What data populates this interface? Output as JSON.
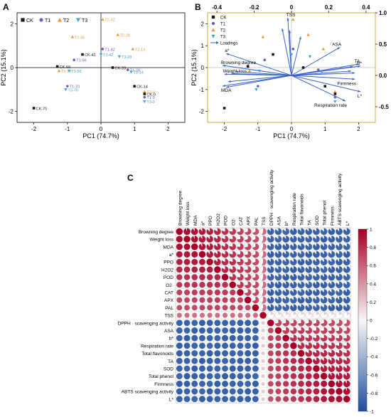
{
  "panels": {
    "A": "A",
    "B": "B",
    "C": "C"
  },
  "chart_data": [
    {
      "type": "scatter",
      "panel": "A",
      "xlabel": "PC1 (74.7%)",
      "ylabel": "PC2 (15.1%)",
      "xlim": [
        -2.5,
        2.5
      ],
      "ylim": [
        -2.5,
        2.5
      ],
      "xticks": [
        -2,
        -1,
        0,
        1,
        2
      ],
      "yticks": [
        -2,
        0,
        2
      ],
      "legend": [
        "CK",
        "T1",
        "T2",
        "T3"
      ],
      "legend_position": "top-left",
      "colors": {
        "CK": "#1a1a1a",
        "T1": "#6a5fc1",
        "T2": "#e89a3c",
        "T3": "#3fa7d6"
      },
      "points": [
        {
          "label": "T2-42",
          "group": "T2",
          "x": 0.05,
          "y": 2.2
        },
        {
          "label": "T2-28",
          "group": "T2",
          "x": 0.5,
          "y": 1.5
        },
        {
          "label": "T2-56",
          "group": "T2",
          "x": -0.85,
          "y": 1.4
        },
        {
          "label": "T2-14",
          "group": "T2",
          "x": 0.95,
          "y": 0.85
        },
        {
          "label": "CK-42",
          "group": "CK",
          "x": -0.55,
          "y": 0.6
        },
        {
          "label": "T1-42",
          "group": "T1",
          "x": 0.05,
          "y": 0.85
        },
        {
          "label": "T3-42",
          "group": "T3",
          "x": 0.0,
          "y": 0.6
        },
        {
          "label": "T1-56",
          "group": "T1",
          "x": -0.8,
          "y": 0.35
        },
        {
          "label": "T3-28",
          "group": "T3",
          "x": 0.55,
          "y": 0.5
        },
        {
          "label": "T1-28",
          "group": "T1",
          "x": 0.8,
          "y": -0.1
        },
        {
          "label": "CK-56",
          "group": "CK",
          "x": -1.3,
          "y": 0.05
        },
        {
          "label": "T2-70",
          "group": "T2",
          "x": -1.25,
          "y": -0.15
        },
        {
          "label": "T3-56",
          "group": "T3",
          "x": -0.95,
          "y": -0.15
        },
        {
          "label": "CK-28",
          "group": "CK",
          "x": 0.35,
          "y": 0.0
        },
        {
          "label": "T3-14",
          "group": "T3",
          "x": 0.9,
          "y": -0.2
        },
        {
          "label": "CK-14",
          "group": "CK",
          "x": 1.0,
          "y": -0.85
        },
        {
          "label": "T1-70",
          "group": "T1",
          "x": -1.0,
          "y": -0.85
        },
        {
          "label": "T3-70",
          "group": "T3",
          "x": -1.05,
          "y": -1.0
        },
        {
          "label": "T2-0",
          "group": "T2",
          "x": 1.3,
          "y": -1.1
        },
        {
          "label": "CK-0",
          "group": "CK",
          "x": 1.3,
          "y": -1.2
        },
        {
          "label": "T1-0",
          "group": "T1",
          "x": 1.3,
          "y": -1.35
        },
        {
          "label": "T3-0",
          "group": "T3",
          "x": 1.3,
          "y": -1.55
        },
        {
          "label": "CK-70",
          "group": "CK",
          "x": -2.0,
          "y": -1.85
        }
      ]
    },
    {
      "type": "scatter",
      "panel": "B",
      "xlabel": "PC1 (74.7%)",
      "ylabel": "PC2 (15.1%)",
      "xlim": [
        -2.5,
        2.5
      ],
      "ylim": [
        -2.5,
        2.5
      ],
      "xticks": [
        -2,
        -1,
        0,
        1,
        2
      ],
      "yticks": [
        -2,
        -1,
        0,
        1,
        2
      ],
      "top_xlim": [
        -0.45,
        0.45
      ],
      "top_xticks": [
        "-0.4",
        "-0.2",
        "0",
        "0.2",
        "0.4"
      ],
      "right_ylim": [
        -0.75,
        1.0
      ],
      "right_yticks": [
        "1.0",
        "0.5",
        "0.0",
        "-0.5"
      ],
      "legend": [
        "CK",
        "T1",
        "T2",
        "T3",
        "Loadings"
      ],
      "legend_position": "top-left",
      "points": [
        {
          "group": "T2",
          "x": 0.05,
          "y": 2.2
        },
        {
          "group": "T2",
          "x": 0.5,
          "y": 1.5
        },
        {
          "group": "T2",
          "x": -0.85,
          "y": 1.4
        },
        {
          "group": "T2",
          "x": 0.95,
          "y": 0.85
        },
        {
          "group": "CK",
          "x": -0.55,
          "y": 0.6
        },
        {
          "group": "T1",
          "x": 0.05,
          "y": 0.85
        },
        {
          "group": "T3",
          "x": 0.0,
          "y": 0.6
        },
        {
          "group": "T1",
          "x": -0.8,
          "y": 0.35
        },
        {
          "group": "T3",
          "x": 0.55,
          "y": 0.5
        },
        {
          "group": "T1",
          "x": 0.8,
          "y": -0.1
        },
        {
          "group": "CK",
          "x": -1.3,
          "y": 0.05
        },
        {
          "group": "T2",
          "x": -1.25,
          "y": -0.15
        },
        {
          "group": "T3",
          "x": -0.95,
          "y": -0.15
        },
        {
          "group": "CK",
          "x": 0.35,
          "y": 0.0
        },
        {
          "group": "T3",
          "x": 0.9,
          "y": -0.2
        },
        {
          "group": "CK",
          "x": 1.0,
          "y": -0.85
        },
        {
          "group": "T1",
          "x": -1.0,
          "y": -0.85
        },
        {
          "group": "T3",
          "x": -1.05,
          "y": -1.0
        },
        {
          "group": "T2",
          "x": 1.3,
          "y": -1.1
        },
        {
          "group": "CK",
          "x": 1.3,
          "y": -1.2
        },
        {
          "group": "T1",
          "x": 1.3,
          "y": -1.35
        },
        {
          "group": "T3",
          "x": 1.3,
          "y": -1.55
        },
        {
          "group": "CK",
          "x": -2.0,
          "y": -1.85
        }
      ],
      "loadings": [
        {
          "label": "TSS",
          "x": -0.02,
          "y": 0.92
        },
        {
          "label": "ASA",
          "x": 0.26,
          "y": 0.45
        },
        {
          "label": "TA",
          "x": 0.36,
          "y": 0.18
        },
        {
          "label": "b*",
          "x": 0.37,
          "y": 0.15
        },
        {
          "label": "Firmness",
          "x": 0.34,
          "y": -0.06
        },
        {
          "label": "L*",
          "x": 0.37,
          "y": -0.26
        },
        {
          "label": "Respiration rate",
          "x": 0.29,
          "y": -0.41
        },
        {
          "label": "a*",
          "x": -0.35,
          "y": 0.35
        },
        {
          "label": "Browning degree",
          "x": -0.37,
          "y": 0.16
        },
        {
          "label": "Weight loss",
          "x": -0.36,
          "y": 0.02
        },
        {
          "label": "MDA",
          "x": -0.37,
          "y": -0.17
        },
        {
          "label": "",
          "x": -0.05,
          "y": 0.75
        },
        {
          "label": "",
          "x": -0.01,
          "y": 0.72
        },
        {
          "label": "",
          "x": 0.05,
          "y": 0.62
        },
        {
          "label": "",
          "x": -0.3,
          "y": 0.06
        },
        {
          "label": "",
          "x": -0.32,
          "y": 0.03
        },
        {
          "label": "",
          "x": -0.34,
          "y": -0.1
        },
        {
          "label": "",
          "x": -0.35,
          "y": -0.19
        },
        {
          "label": "",
          "x": 0.33,
          "y": 0.14
        },
        {
          "label": "",
          "x": 0.32,
          "y": 0.07
        },
        {
          "label": "",
          "x": 0.34,
          "y": 0.04
        }
      ]
    },
    {
      "type": "heatmap",
      "panel": "C",
      "variables": [
        "Browning degree",
        "Weight loss",
        "MDA",
        "a*",
        "PPO",
        "H2O2",
        "POD",
        "O2·",
        "CAT",
        "APX",
        "PAL",
        "TSS",
        "DPPH · scavenging activity",
        "ASA",
        "b*",
        "Respiration rate",
        "Total flavonoids",
        "TA",
        "SOD",
        "Total phenol",
        "Firmness",
        "ABTS scavenging activity",
        "L*"
      ],
      "colorbar": {
        "ticks": [
          "1",
          "0.8",
          "0.6",
          "0.4",
          "0.2",
          "0",
          "-0.2",
          "-0.4",
          "-0.6",
          "-0.8",
          "-1"
        ],
        "min": -1,
        "max": 1
      },
      "palette": {
        "pos": "#a50026",
        "mid": "#f7f7f7",
        "neg": "#1f4e9c"
      },
      "group_sizes": [
        11,
        1,
        11
      ],
      "within_first": [
        0.98,
        0.96,
        0.95,
        0.92,
        0.9,
        0.88,
        0.82,
        0.8,
        0.75,
        0.72,
        0.7
      ],
      "within_last": [
        0.7,
        0.75,
        0.8,
        0.82,
        0.85,
        0.88,
        0.9,
        0.92,
        0.95,
        0.96,
        0.97
      ],
      "between": -0.9,
      "tss_first": 0.55,
      "tss_last": 0.18
    }
  ]
}
